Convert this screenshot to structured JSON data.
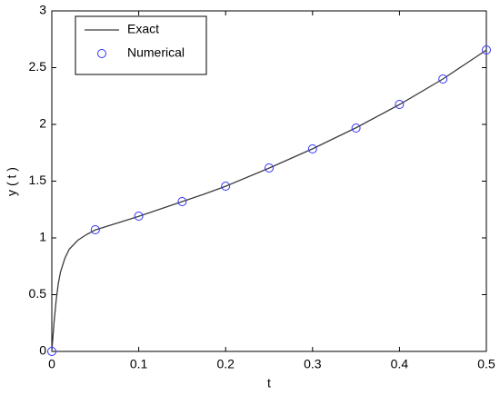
{
  "chart_data": {
    "type": "line",
    "xlabel": "t",
    "ylabel": "y ( t )",
    "xlim": [
      0,
      0.5
    ],
    "xticks": [
      0,
      0.1,
      0.2,
      0.3,
      0.4,
      0.5
    ],
    "ylim": [
      0,
      3
    ],
    "yticks": [
      0,
      0.5,
      1,
      1.5,
      2,
      2.5,
      3
    ],
    "legend": "northwest",
    "series": [
      {
        "name": "Exact",
        "color": "#3c3c3c",
        "marker": "none",
        "line": "solid",
        "x": [
          0,
          0.0025,
          0.005,
          0.0075,
          0.01,
          0.015,
          0.02,
          0.03,
          0.04,
          0.05,
          0.075,
          0.1,
          0.125,
          0.15,
          0.175,
          0.2,
          0.25,
          0.3,
          0.35,
          0.4,
          0.45,
          0.5
        ],
        "values": [
          0,
          0.25,
          0.45,
          0.6,
          0.7,
          0.82,
          0.9,
          0.98,
          1.03,
          1.07,
          1.13,
          1.19,
          1.255,
          1.32,
          1.385,
          1.455,
          1.615,
          1.785,
          1.97,
          2.175,
          2.4,
          2.655
        ]
      },
      {
        "name": "Numerical",
        "color": "#3030ff",
        "marker": "circle",
        "line": "none",
        "x": [
          0,
          0.05,
          0.1,
          0.15,
          0.2,
          0.25,
          0.3,
          0.35,
          0.4,
          0.45,
          0.5
        ],
        "values": [
          0,
          1.072,
          1.192,
          1.32,
          1.456,
          1.616,
          1.784,
          1.968,
          2.176,
          2.4,
          2.656
        ]
      }
    ]
  }
}
